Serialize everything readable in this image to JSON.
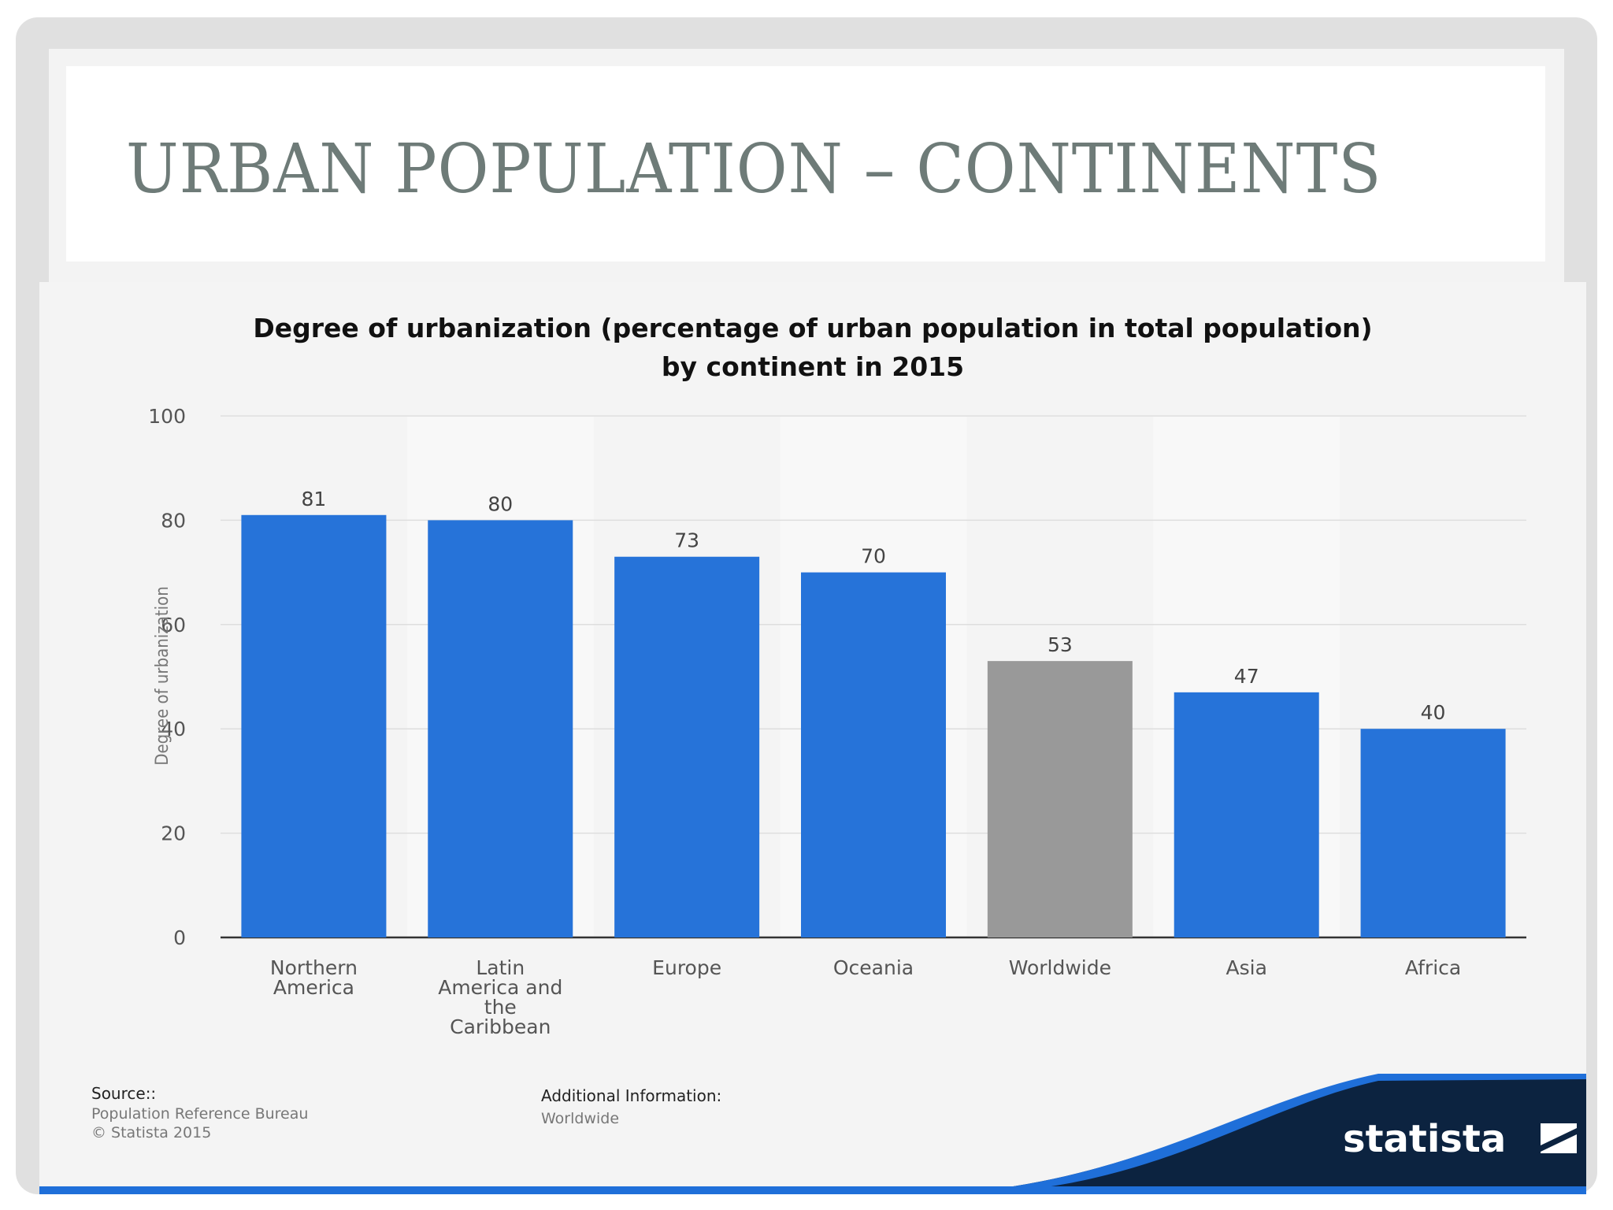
{
  "slide": {
    "title": "URBAN POPULATION – CONTINENTS"
  },
  "chart_data": {
    "type": "bar",
    "title_lines": [
      "Degree of urbanization (percentage of urban population in total population)",
      "by continent in 2015"
    ],
    "categories": [
      [
        "Northern",
        "America"
      ],
      [
        "Latin",
        "America and",
        "the",
        "Caribbean"
      ],
      [
        "Europe"
      ],
      [
        "Oceania"
      ],
      [
        "Worldwide"
      ],
      [
        "Asia"
      ],
      [
        "Africa"
      ]
    ],
    "values": [
      81,
      80,
      73,
      70,
      53,
      47,
      40
    ],
    "value_labels": [
      "81",
      "80",
      "73",
      "70",
      "53",
      "47",
      "40"
    ],
    "bar_colors": [
      "#2673d9",
      "#2673d9",
      "#2673d9",
      "#2673d9",
      "#999999",
      "#2673d9",
      "#2673d9"
    ],
    "ylabel": "Degree of urbanization",
    "xlabel": "",
    "ylim": [
      0,
      100
    ],
    "yticks": [
      0,
      20,
      40,
      60,
      80,
      100
    ],
    "grid": true,
    "legend": "none"
  },
  "footer": {
    "source_heading": "Source::",
    "source_lines": [
      "Population Reference Bureau",
      "© Statista 2015"
    ],
    "additional_heading": "Additional Information:",
    "additional_text": "Worldwide",
    "brand": "statista"
  },
  "colors": {
    "bar_primary": "#2673d9",
    "bar_highlight": "#999999",
    "title_text": "#6e7b78",
    "brand_dark": "#0c2340",
    "brand_blue": "#1f6fd9"
  }
}
